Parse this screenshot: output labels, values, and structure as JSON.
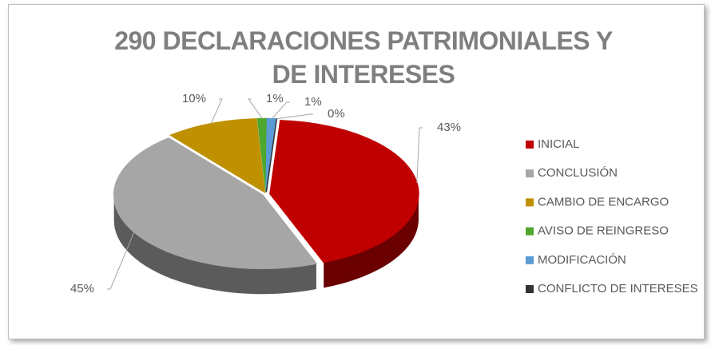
{
  "chart_data": {
    "type": "pie3d",
    "title": "290 DECLARACIONES PATRIMONIALES Y DE INTERESES",
    "categories": [
      "INICIAL",
      "CONCLUSIÓN",
      "CAMBIO DE ENCARGO",
      "AVISO DE REINGRESO",
      "MODIFICACIÓN",
      "CONFLICTO DE INTERESES"
    ],
    "values": [
      43,
      45,
      10,
      1,
      1,
      0
    ],
    "value_labels": [
      "43%",
      "45%",
      "10%",
      "1%",
      "1%",
      "0%"
    ],
    "colors": [
      "#c00000",
      "#a6a6a6",
      "#bf9000",
      "#4ea72e",
      "#5b9bd5",
      "#333333"
    ],
    "legend": "right"
  }
}
